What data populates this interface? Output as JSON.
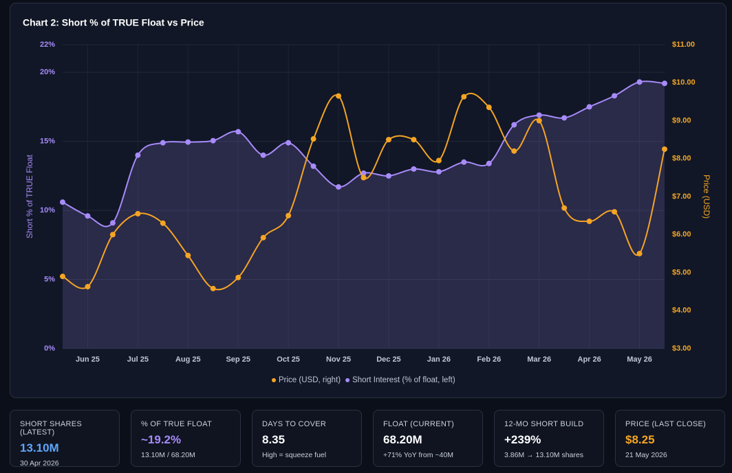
{
  "chart_data": {
    "type": "line",
    "title": "Chart 2: Short % of TRUE Float vs Price",
    "y_label": "Short % of TRUE Float",
    "y2_label": "Price (USD)",
    "categories": [
      null,
      "Jun 25",
      null,
      "Jul 25",
      null,
      "Aug 25",
      null,
      "Sep 25",
      null,
      "Oct 25",
      null,
      "Nov 25",
      null,
      "Dec 25",
      null,
      "Jan 26",
      null,
      "Feb 26",
      null,
      "Mar 26",
      null,
      "Apr 26",
      null,
      "May 26",
      null
    ],
    "series": [
      {
        "name": "Price (USD, right)",
        "color": "#f5a524",
        "axis": "y2",
        "values": [
          4.9,
          4.63,
          6.0,
          6.55,
          6.3,
          5.45,
          4.58,
          4.87,
          5.92,
          6.5,
          8.52,
          9.65,
          7.5,
          8.5,
          8.5,
          7.95,
          9.63,
          9.35,
          8.2,
          9.0,
          6.7,
          6.35,
          6.6,
          5.5,
          8.25
        ]
      },
      {
        "name": "Short Interest (% of float, left)",
        "color": "#a78bfa",
        "values": [
          10.6,
          9.6,
          9.1,
          14.0,
          14.9,
          14.95,
          15.05,
          15.7,
          14.0,
          14.9,
          13.2,
          11.7,
          12.7,
          12.5,
          13.0,
          12.8,
          13.5,
          13.4,
          16.2,
          16.9,
          16.7,
          17.5,
          18.3,
          19.3,
          19.2
        ]
      }
    ],
    "ylim": [
      0,
      22
    ],
    "yticks": [
      {
        "value": 0,
        "label": "0%"
      },
      {
        "value": 5,
        "label": "5%"
      },
      {
        "value": 10,
        "label": "10%"
      },
      {
        "value": 15,
        "label": "15%"
      },
      {
        "value": 20,
        "label": "20%"
      },
      {
        "value": 22,
        "label": "22%"
      }
    ],
    "y2lim": [
      3,
      11
    ],
    "y2ticks": [
      {
        "value": 3,
        "label": "$3.00"
      },
      {
        "value": 4,
        "label": "$4.00"
      },
      {
        "value": 5,
        "label": "$5.00"
      },
      {
        "value": 6,
        "label": "$6.00"
      },
      {
        "value": 7,
        "label": "$7.00"
      },
      {
        "value": 8,
        "label": "$8.00"
      },
      {
        "value": 9,
        "label": "$9.00"
      },
      {
        "value": 10,
        "label": "$10.00"
      },
      {
        "value": 11,
        "label": "$11.00"
      }
    ],
    "grid": true,
    "legend": "bottom"
  },
  "cards": [
    {
      "label": "SHORT SHARES (LATEST)",
      "value": "13.10M",
      "note": "30 Apr 2026",
      "color": "#60a5fa"
    },
    {
      "label": "% OF TRUE FLOAT",
      "value": "~19.2%",
      "note": "13.10M / 68.20M",
      "color": "#a78bfa"
    },
    {
      "label": "DAYS TO COVER",
      "value": "8.35",
      "note": "High = squeeze fuel",
      "color": "#ffffff"
    },
    {
      "label": "FLOAT (CURRENT)",
      "value": "68.20M",
      "note": "+71% YoY from ~40M",
      "color": "#ffffff"
    },
    {
      "label": "12-MO SHORT BUILD",
      "value": "+239%",
      "note": "3.86M → 13.10M shares",
      "color": "#ffffff"
    },
    {
      "label": "PRICE (LAST CLOSE)",
      "value": "$8.25",
      "note": "21 May 2026",
      "color": "#f5a524"
    }
  ]
}
